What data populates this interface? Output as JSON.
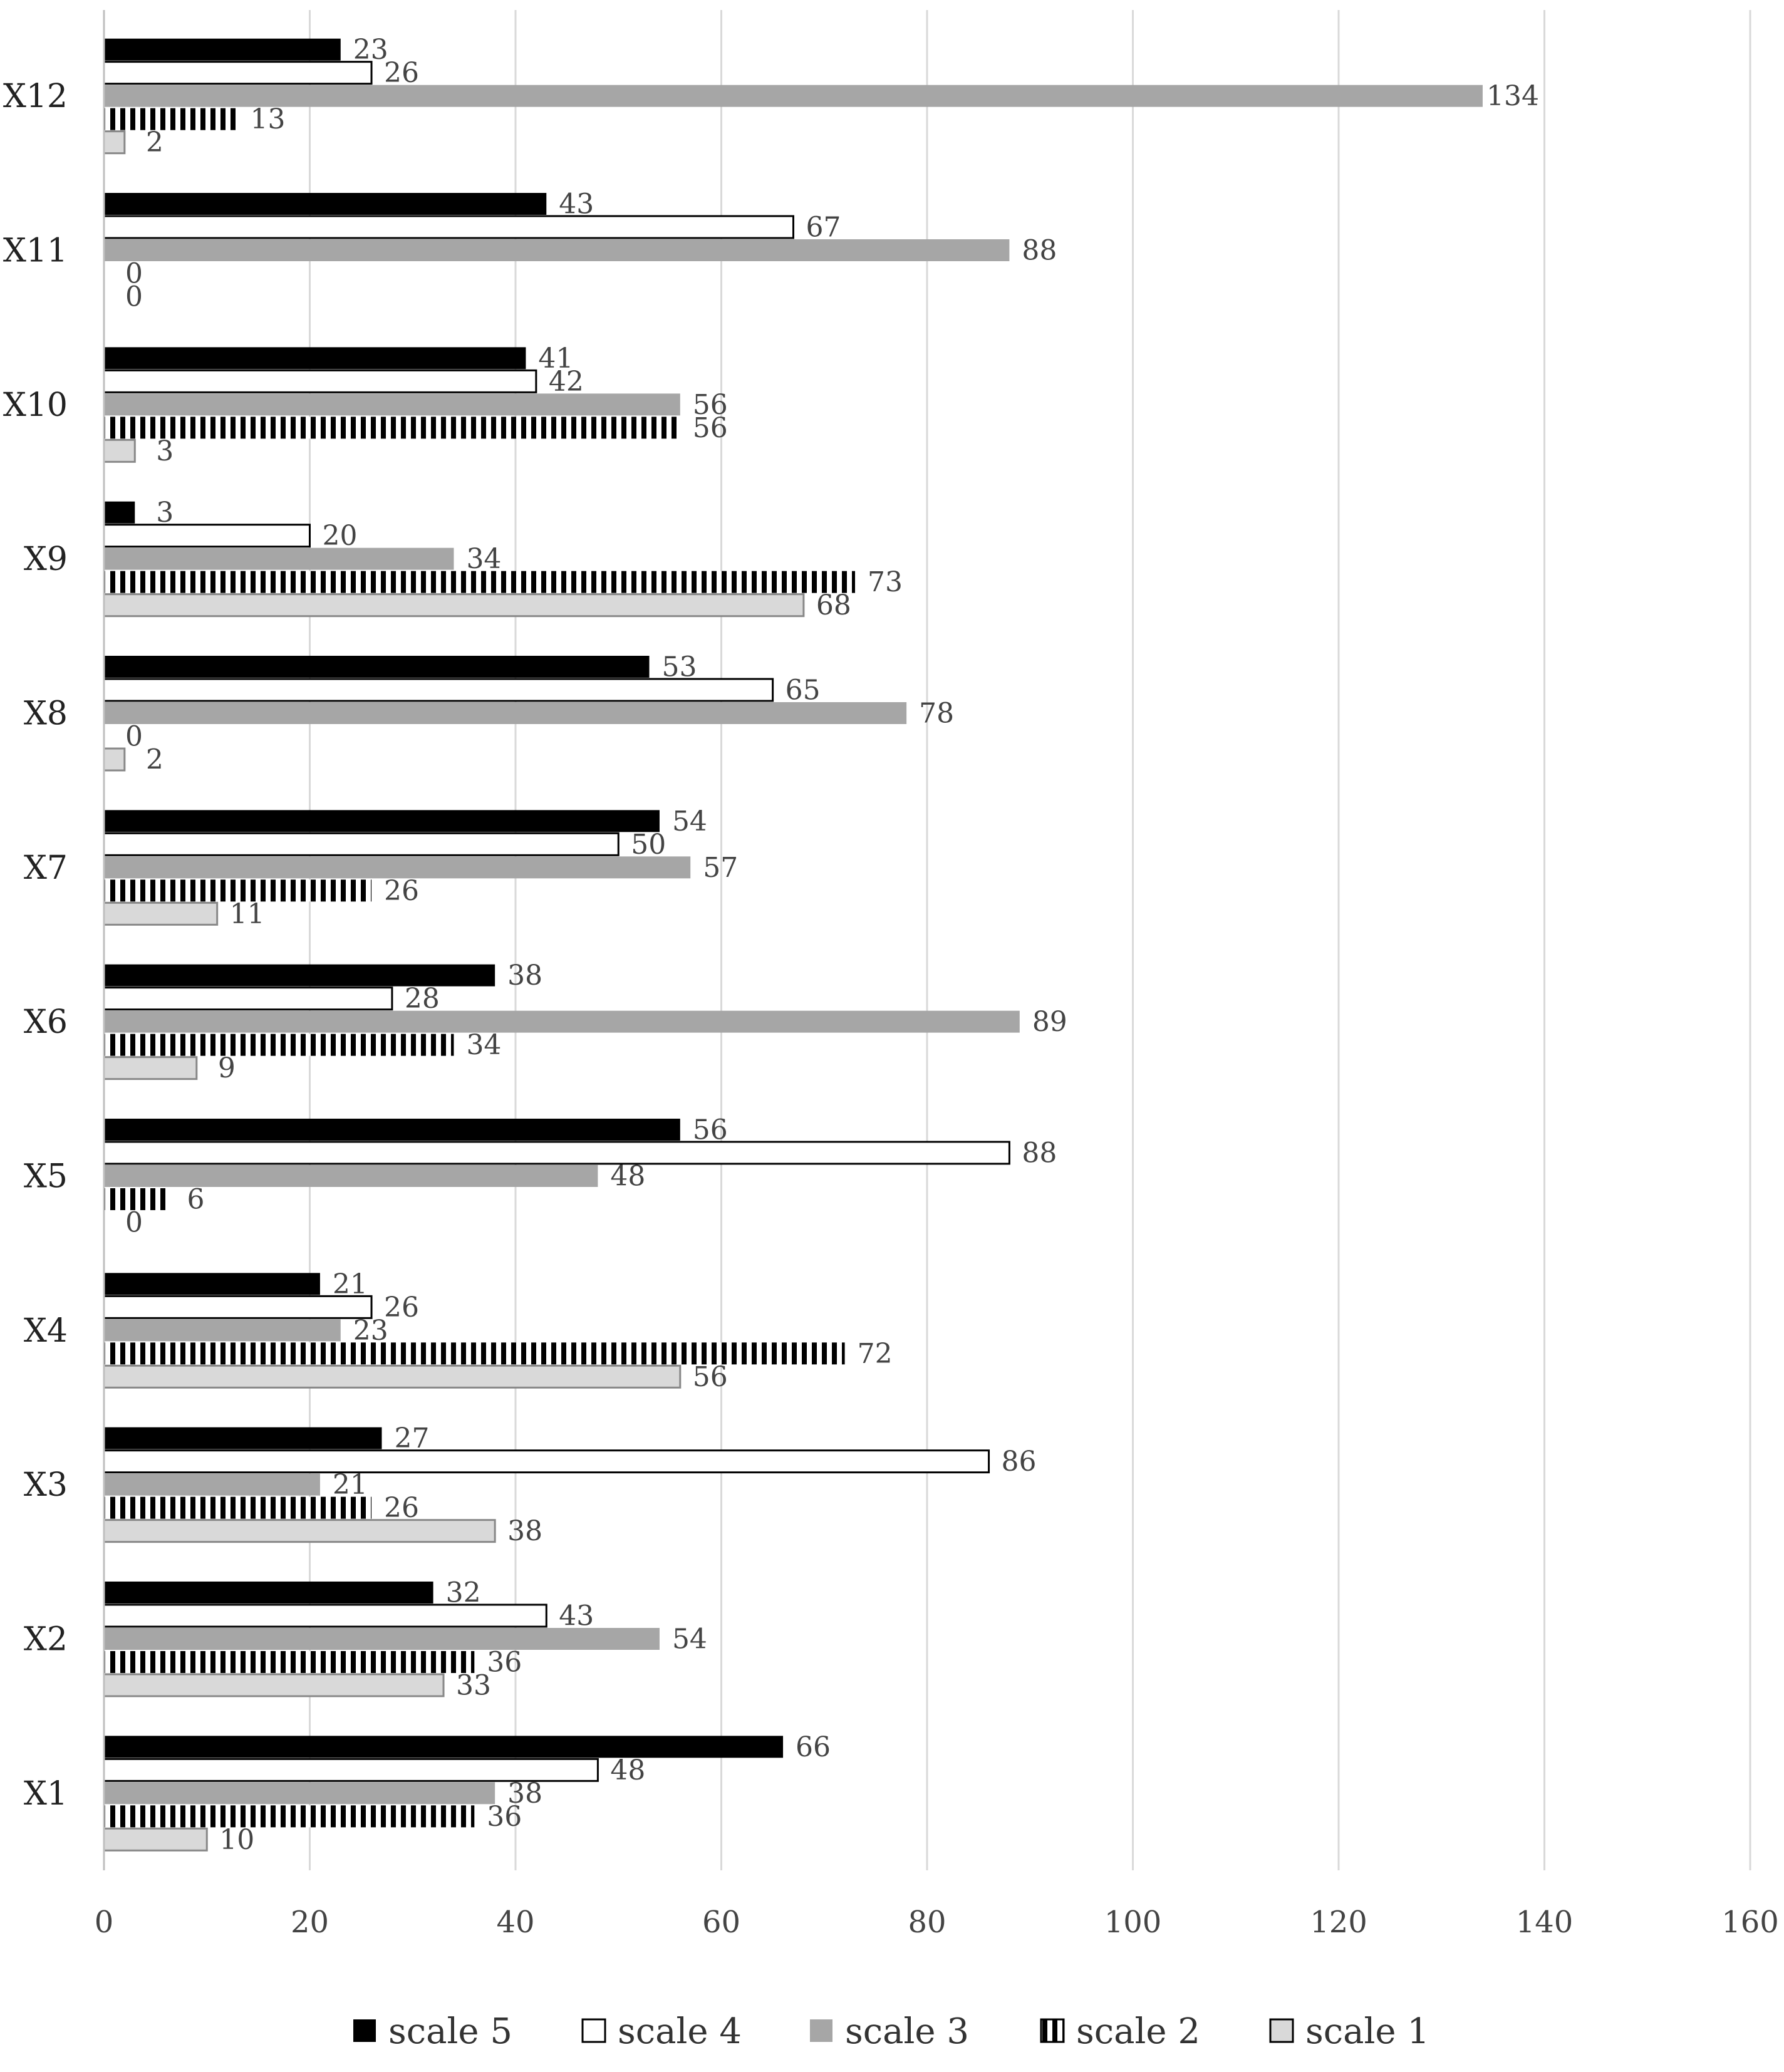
{
  "chart_data": {
    "type": "bar",
    "orientation": "horizontal",
    "categories": [
      "X1",
      "X2",
      "X3",
      "X4",
      "X5",
      "X6",
      "X7",
      "X8",
      "X9",
      "X10",
      "X11",
      "X12"
    ],
    "series": [
      {
        "name": "scale 5",
        "values": [
          66,
          32,
          27,
          21,
          56,
          38,
          54,
          53,
          3,
          41,
          43,
          23
        ],
        "color": "#000000",
        "pattern": "solid"
      },
      {
        "name": "scale 4",
        "values": [
          48,
          43,
          86,
          26,
          88,
          28,
          50,
          65,
          20,
          42,
          67,
          26
        ],
        "color": "#ffffff",
        "pattern": "outline"
      },
      {
        "name": "scale 3",
        "values": [
          38,
          54,
          21,
          23,
          48,
          89,
          57,
          78,
          34,
          56,
          88,
          134
        ],
        "color": "#a6a6a6",
        "pattern": "solid"
      },
      {
        "name": "scale 2",
        "values": [
          36,
          36,
          26,
          72,
          6,
          34,
          26,
          0,
          73,
          56,
          0,
          13
        ],
        "color": "#000000",
        "pattern": "vertical-stripes"
      },
      {
        "name": "scale 1",
        "values": [
          10,
          33,
          38,
          56,
          0,
          9,
          11,
          2,
          68,
          3,
          0,
          2
        ],
        "color": "#d9d9d9",
        "pattern": "solid-outline"
      }
    ],
    "xlim": [
      0,
      160
    ],
    "xticks": [
      0,
      20,
      40,
      60,
      80,
      100,
      120,
      140,
      160
    ],
    "title": "",
    "xlabel": "",
    "ylabel": "",
    "grid": "vertical",
    "legend": "bottom",
    "data_labels": true
  }
}
